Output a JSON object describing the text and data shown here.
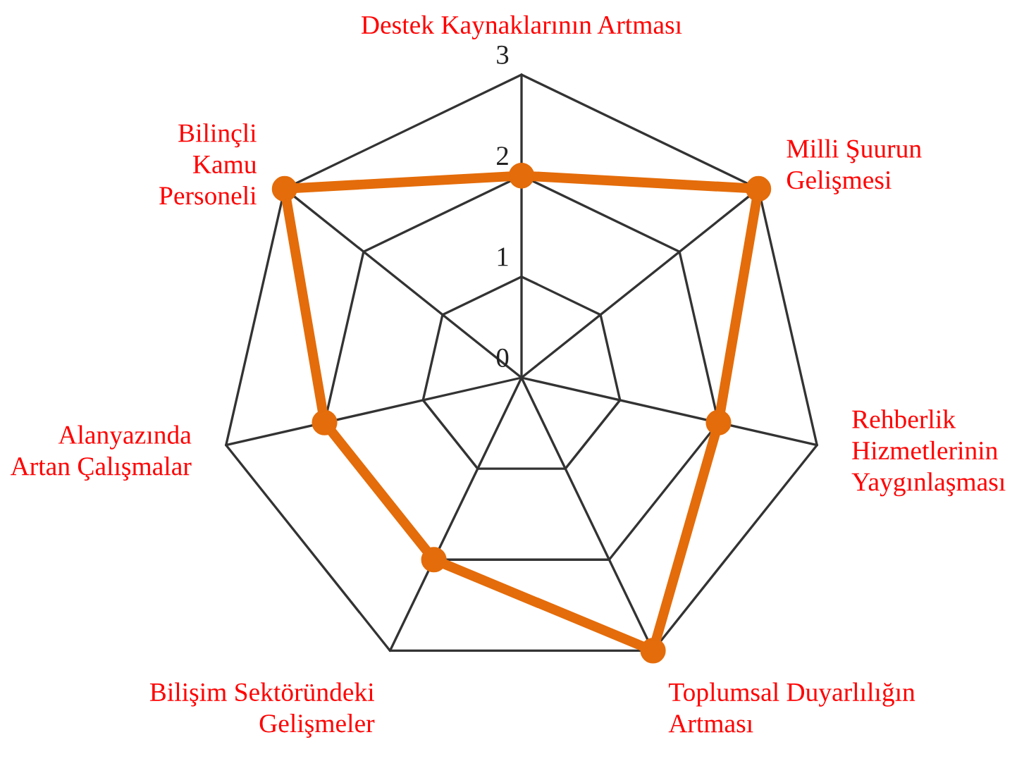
{
  "chart_data": {
    "type": "radar",
    "categories": [
      "Destek Kaynaklarının Artması",
      "Milli Şuurun\nGelişmesi",
      "Rehberlik\nHizmetlerinin\nYaygınlaşması",
      "Toplumsal Duyarlılığın\nArtması",
      "Bilişim Sektöründeki\nGelişmeler",
      "Alanyazında\nArtan Çalışmalar",
      "Bilinçli\nKamu\nPersoneli"
    ],
    "series": [
      {
        "color": "#e46c0a",
        "values": [
          2,
          3,
          2,
          3,
          2,
          2,
          3
        ]
      }
    ],
    "ylim": [
      0,
      3
    ],
    "yticks": [
      0,
      1,
      2,
      3
    ],
    "grid": true,
    "marker": "circle",
    "line_style": "solid"
  }
}
